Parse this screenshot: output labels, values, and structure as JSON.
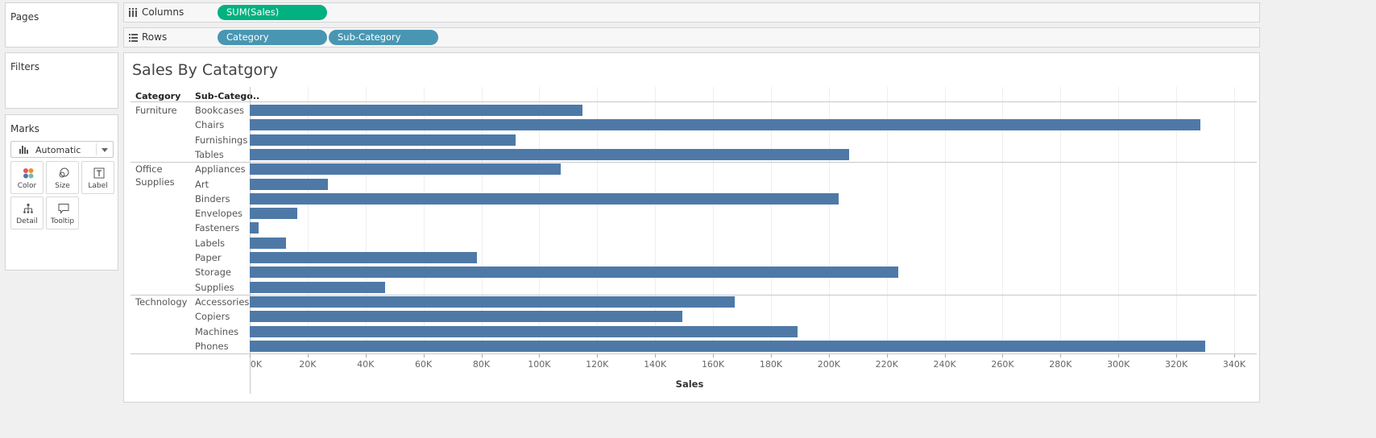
{
  "cards": {
    "pages": {
      "title": "Pages"
    },
    "filters": {
      "title": "Filters"
    },
    "marks": {
      "title": "Marks",
      "type": "Automatic",
      "buttons": [
        "Color",
        "Size",
        "Label",
        "Detail",
        "Tooltip"
      ]
    }
  },
  "shelves": {
    "columns": {
      "label": "Columns",
      "pills": [
        "SUM(Sales)"
      ]
    },
    "rows": {
      "label": "Rows",
      "pills": [
        "Category",
        "Sub-Category"
      ]
    }
  },
  "colors": {
    "measure_pill": "#02b180",
    "dimension_pill": "#4996b2",
    "bar": "#4e79a7"
  },
  "viz": {
    "title": "Sales By Catatgory",
    "headers": {
      "category": "Category",
      "subcategory": "Sub-Catego.."
    }
  },
  "chart_data": {
    "type": "bar",
    "orientation": "horizontal",
    "title": "Sales By Catatgory",
    "xlabel": "Sales",
    "xlim": [
      0,
      340000
    ],
    "x_ticks": [
      "0K",
      "20K",
      "40K",
      "60K",
      "80K",
      "100K",
      "120K",
      "140K",
      "160K",
      "180K",
      "200K",
      "220K",
      "240K",
      "260K",
      "280K",
      "300K",
      "320K",
      "340K"
    ],
    "groups": [
      {
        "category": "Furniture",
        "items": [
          {
            "name": "Bookcases",
            "value": 114880
          },
          {
            "name": "Chairs",
            "value": 328449
          },
          {
            "name": "Furnishings",
            "value": 91705
          },
          {
            "name": "Tables",
            "value": 206966
          }
        ]
      },
      {
        "category": "Office Supplies",
        "items": [
          {
            "name": "Appliances",
            "value": 107532
          },
          {
            "name": "Art",
            "value": 27119
          },
          {
            "name": "Binders",
            "value": 203413
          },
          {
            "name": "Envelopes",
            "value": 16476
          },
          {
            "name": "Fasteners",
            "value": 3024
          },
          {
            "name": "Labels",
            "value": 12486
          },
          {
            "name": "Paper",
            "value": 78479
          },
          {
            "name": "Storage",
            "value": 223844
          },
          {
            "name": "Supplies",
            "value": 46674
          }
        ]
      },
      {
        "category": "Technology",
        "items": [
          {
            "name": "Accessories",
            "value": 167380
          },
          {
            "name": "Copiers",
            "value": 149528
          },
          {
            "name": "Machines",
            "value": 189239
          },
          {
            "name": "Phones",
            "value": 330007
          }
        ]
      }
    ]
  }
}
